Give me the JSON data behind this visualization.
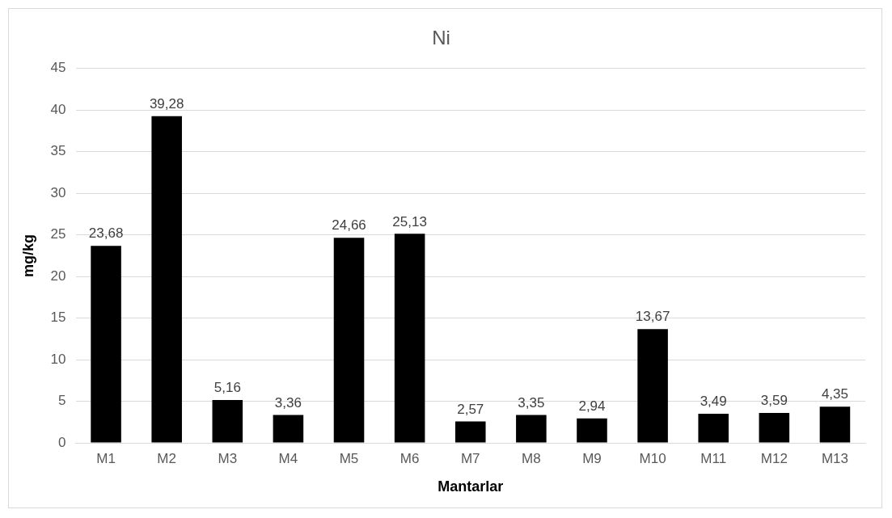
{
  "chart_data": {
    "type": "bar",
    "title": "Ni",
    "xlabel": "Mantarlar",
    "ylabel": "mg/kg",
    "categories": [
      "M1",
      "M2",
      "M3",
      "M4",
      "M5",
      "M6",
      "M7",
      "M8",
      "M9",
      "M10",
      "M11",
      "M12",
      "M13"
    ],
    "values": [
      23.68,
      39.28,
      5.16,
      3.36,
      24.66,
      25.13,
      2.57,
      3.35,
      2.94,
      13.67,
      3.49,
      3.59,
      4.35
    ],
    "value_labels": [
      "23,68",
      "39,28",
      "5,16",
      "3,36",
      "24,66",
      "25,13",
      "2,57",
      "3,35",
      "2,94",
      "13,67",
      "3,49",
      "3,59",
      "4,35"
    ],
    "color": "#000000",
    "ylim": [
      0,
      45
    ],
    "yticks": [
      0,
      5,
      10,
      15,
      20,
      25,
      30,
      35,
      40,
      45
    ],
    "grid": "y",
    "legend": false
  }
}
